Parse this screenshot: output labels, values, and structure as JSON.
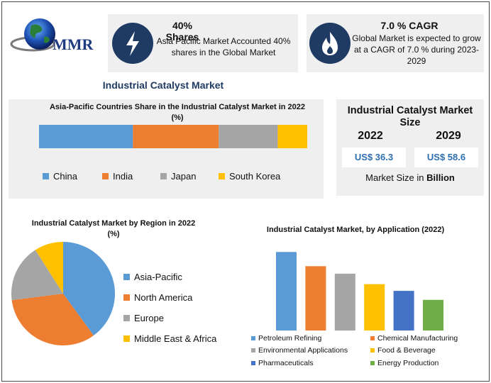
{
  "logo": {
    "text": "MMR",
    "icon": "globe-logo-icon"
  },
  "stats": [
    {
      "title": "40% Shares",
      "description": "Asia Pacific Market Accounted 40% shares in the Global Market",
      "icon": "lightning-icon"
    },
    {
      "title": "7.0 % CAGR",
      "description": "Global Market is expected to grow at a CAGR of 7.0 % during 2023-2029",
      "icon": "flame-icon"
    }
  ],
  "main_title": "Industrial Catalyst Market",
  "market_size": {
    "title": "Industrial Catalyst Market Size",
    "years": [
      "2022",
      "2029"
    ],
    "values": [
      "US$ 36.3",
      "US$ 58.6"
    ],
    "footer_prefix": "Market Size in ",
    "footer_unit": "Billion"
  },
  "colors": {
    "blue": "#5b9bd5",
    "orange": "#ed7d31",
    "gray": "#a5a5a5",
    "yellow": "#ffc000",
    "darkblue": "#4472c4",
    "green": "#70ad47",
    "navy": "#1f3b64"
  },
  "chart_data": [
    {
      "type": "bar",
      "orientation": "horizontal-stacked",
      "title": "Asia-Pacific Countries Share in the Industrial Catalyst Market  in 2022",
      "subtitle": "(%)",
      "categories": [
        "China",
        "India",
        "Japan",
        "South Korea"
      ],
      "values": [
        35,
        32,
        22,
        11
      ],
      "colors": [
        "#5b9bd5",
        "#ed7d31",
        "#a5a5a5",
        "#ffc000"
      ],
      "legend": "bottom"
    },
    {
      "type": "pie",
      "title": "Industrial Catalyst Market by Region in 2022",
      "subtitle": "(%)",
      "categories": [
        "Asia-Pacific",
        "North America",
        "Europe",
        "Middle East & Africa"
      ],
      "values": [
        40,
        33,
        18,
        9
      ],
      "colors": [
        "#5b9bd5",
        "#ed7d31",
        "#a5a5a5",
        "#ffc000"
      ],
      "legend": "right"
    },
    {
      "type": "bar",
      "title": "Industrial Catalyst Market, by Application (2022)",
      "categories": [
        "Petroleum Refining",
        "Chemical Manufacturing",
        "Environmental Applications",
        "Food & Beverage",
        "Pharmaceuticals",
        "Energy Production"
      ],
      "values": [
        105,
        86,
        76,
        62,
        53,
        41
      ],
      "ylim": [
        0,
        110
      ],
      "colors": [
        "#5b9bd5",
        "#ed7d31",
        "#a5a5a5",
        "#ffc000",
        "#4472c4",
        "#70ad47"
      ],
      "legend": "bottom",
      "grid": false
    }
  ]
}
